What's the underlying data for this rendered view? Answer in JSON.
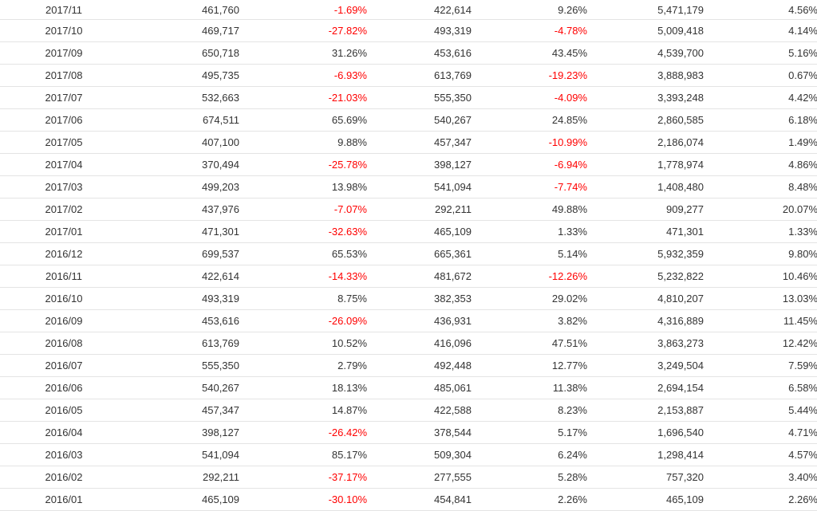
{
  "colors": {
    "text": "#333333",
    "negative": "#ff0000",
    "divider": "#e4e4e4"
  },
  "rows": [
    [
      "2017/11",
      "461,760",
      "-1.69%",
      "422,614",
      "9.26%",
      "5,471,179",
      "4.56%"
    ],
    [
      "2017/10",
      "469,717",
      "-27.82%",
      "493,319",
      "-4.78%",
      "5,009,418",
      "4.14%"
    ],
    [
      "2017/09",
      "650,718",
      "31.26%",
      "453,616",
      "43.45%",
      "4,539,700",
      "5.16%"
    ],
    [
      "2017/08",
      "495,735",
      "-6.93%",
      "613,769",
      "-19.23%",
      "3,888,983",
      "0.67%"
    ],
    [
      "2017/07",
      "532,663",
      "-21.03%",
      "555,350",
      "-4.09%",
      "3,393,248",
      "4.42%"
    ],
    [
      "2017/06",
      "674,511",
      "65.69%",
      "540,267",
      "24.85%",
      "2,860,585",
      "6.18%"
    ],
    [
      "2017/05",
      "407,100",
      "9.88%",
      "457,347",
      "-10.99%",
      "2,186,074",
      "1.49%"
    ],
    [
      "2017/04",
      "370,494",
      "-25.78%",
      "398,127",
      "-6.94%",
      "1,778,974",
      "4.86%"
    ],
    [
      "2017/03",
      "499,203",
      "13.98%",
      "541,094",
      "-7.74%",
      "1,408,480",
      "8.48%"
    ],
    [
      "2017/02",
      "437,976",
      "-7.07%",
      "292,211",
      "49.88%",
      "909,277",
      "20.07%"
    ],
    [
      "2017/01",
      "471,301",
      "-32.63%",
      "465,109",
      "1.33%",
      "471,301",
      "1.33%"
    ],
    [
      "2016/12",
      "699,537",
      "65.53%",
      "665,361",
      "5.14%",
      "5,932,359",
      "9.80%"
    ],
    [
      "2016/11",
      "422,614",
      "-14.33%",
      "481,672",
      "-12.26%",
      "5,232,822",
      "10.46%"
    ],
    [
      "2016/10",
      "493,319",
      "8.75%",
      "382,353",
      "29.02%",
      "4,810,207",
      "13.03%"
    ],
    [
      "2016/09",
      "453,616",
      "-26.09%",
      "436,931",
      "3.82%",
      "4,316,889",
      "11.45%"
    ],
    [
      "2016/08",
      "613,769",
      "10.52%",
      "416,096",
      "47.51%",
      "3,863,273",
      "12.42%"
    ],
    [
      "2016/07",
      "555,350",
      "2.79%",
      "492,448",
      "12.77%",
      "3,249,504",
      "7.59%"
    ],
    [
      "2016/06",
      "540,267",
      "18.13%",
      "485,061",
      "11.38%",
      "2,694,154",
      "6.58%"
    ],
    [
      "2016/05",
      "457,347",
      "14.87%",
      "422,588",
      "8.23%",
      "2,153,887",
      "5.44%"
    ],
    [
      "2016/04",
      "398,127",
      "-26.42%",
      "378,544",
      "5.17%",
      "1,696,540",
      "4.71%"
    ],
    [
      "2016/03",
      "541,094",
      "85.17%",
      "509,304",
      "6.24%",
      "1,298,414",
      "4.57%"
    ],
    [
      "2016/02",
      "292,211",
      "-37.17%",
      "277,555",
      "5.28%",
      "757,320",
      "3.40%"
    ],
    [
      "2016/01",
      "465,109",
      "-30.10%",
      "454,841",
      "2.26%",
      "465,109",
      "2.26%"
    ]
  ]
}
